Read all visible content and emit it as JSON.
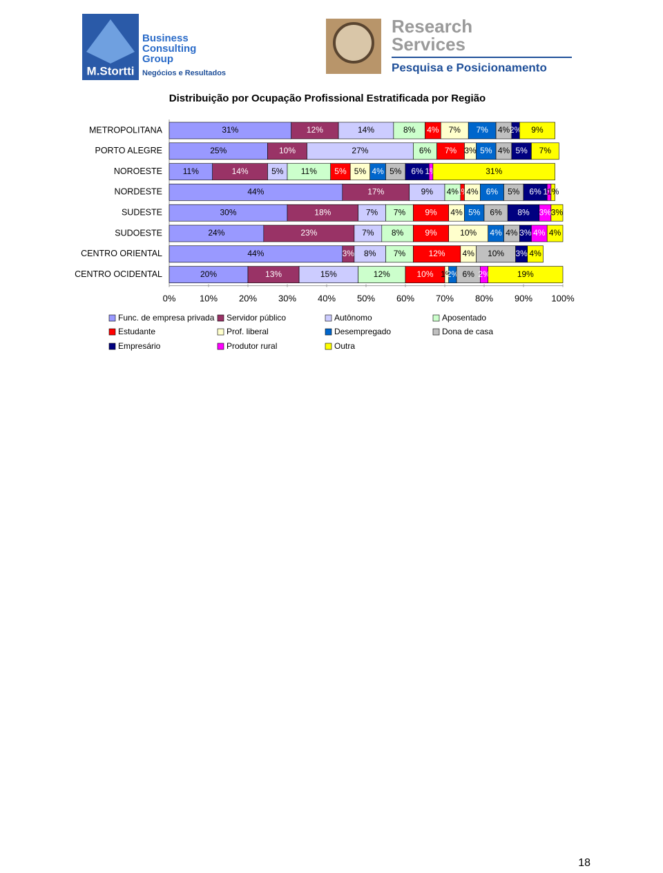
{
  "header": {
    "left_logo": {
      "line1": "Business",
      "line2": "Consulting",
      "line3": "Group",
      "brand": "M.Stortti",
      "tagline": "Negócios e Resultados"
    },
    "right_logo": {
      "line1": "Research",
      "line2": "Services",
      "tagline": "Pesquisa e Posicionamento"
    }
  },
  "chart_data": {
    "type": "stacked-bar-horizontal",
    "title": "Distribuição por Ocupação Profissional Estratificada por Região",
    "categories": [
      "METROPOLITANA",
      "PORTO ALEGRE",
      "NOROESTE",
      "NORDESTE",
      "SUDESTE",
      "SUDOESTE",
      "CENTRO ORIENTAL",
      "CENTRO OCIDENTAL"
    ],
    "series": [
      {
        "name": "Func. de empresa privada",
        "color": "#9999ff",
        "values": [
          31,
          25,
          11,
          44,
          30,
          24,
          44,
          20
        ],
        "value_labels": [
          "31%",
          "25%",
          "11%",
          "44%",
          "30%",
          "24%",
          "44%",
          "20%"
        ]
      },
      {
        "name": "Servidor público",
        "color": "#993366",
        "values": [
          12,
          10,
          14,
          17,
          18,
          23,
          3,
          13
        ],
        "value_labels": [
          "12%",
          "10%",
          "14%",
          "17%",
          "18%",
          "23%",
          "3%",
          "13%"
        ]
      },
      {
        "name": "Autônomo",
        "color": "#ccccff",
        "values": [
          14,
          27,
          5,
          9,
          7,
          7,
          8,
          15
        ],
        "value_labels": [
          "14%",
          "27%",
          "5%",
          "9%",
          "7%",
          "7%",
          "8%",
          "15%"
        ]
      },
      {
        "name": "Aposentado",
        "color": "#ccffcc",
        "values": [
          8,
          6,
          11,
          4,
          7,
          8,
          7,
          12
        ],
        "value_labels": [
          "8%",
          "6%",
          "11%",
          "4%",
          "7%",
          "8%",
          "7%",
          "12%"
        ]
      },
      {
        "name": "Estudante",
        "color": "#ff0000",
        "values": [
          4,
          7,
          5,
          1,
          9,
          9,
          12,
          10
        ],
        "value_labels": [
          "4%",
          "7%",
          "5%",
          "1%",
          "9%",
          "9%",
          "12%",
          "10%"
        ]
      },
      {
        "name": "Prof. liberal",
        "color": "#ffffcc",
        "values": [
          7,
          3,
          5,
          4,
          4,
          10,
          4,
          1
        ],
        "value_labels": [
          "7%",
          "3%",
          "5%",
          "4%",
          "4%",
          "10%",
          "4%",
          "1%"
        ]
      },
      {
        "name": "Desempregado",
        "color": "#0066cc",
        "values": [
          7,
          5,
          4,
          6,
          5,
          4,
          null,
          2
        ],
        "value_labels": [
          "7%",
          "5%",
          "4%",
          "6%",
          "5%",
          "4%",
          null,
          "2%"
        ]
      },
      {
        "name": "Dona de casa",
        "color": "#c0c0c0",
        "values": [
          4,
          4,
          5,
          5,
          6,
          4,
          10,
          6
        ],
        "value_labels": [
          "4%",
          "4%",
          "5%",
          "5%",
          "6%",
          "4%",
          "10%",
          "6%"
        ]
      },
      {
        "name": "Empresário",
        "color": "#000080",
        "values": [
          2,
          5,
          6,
          6,
          8,
          3,
          3,
          null
        ],
        "value_labels": [
          "2%",
          "5%",
          "6%",
          "6%",
          "8%",
          "3%",
          "3%",
          null
        ]
      },
      {
        "name": "Produtor rural",
        "color": "#ff00ff",
        "values": [
          null,
          null,
          1,
          1,
          3,
          4,
          null,
          2
        ],
        "value_labels": [
          null,
          null,
          "1%",
          "1%",
          "3%",
          "4%",
          null,
          "2%"
        ]
      },
      {
        "name": "Outra",
        "color": "#ffff00",
        "values": [
          9,
          7,
          31,
          1,
          3,
          4,
          4,
          19
        ],
        "value_labels": [
          "9%",
          "7%",
          "31%",
          "1%",
          "3%",
          "4%",
          "4%",
          "19%"
        ]
      }
    ],
    "xlim": [
      0,
      100
    ],
    "xticks": [
      {
        "value": 0,
        "label": "0%"
      },
      {
        "value": 10,
        "label": "10%"
      },
      {
        "value": 20,
        "label": "20%"
      },
      {
        "value": 30,
        "label": "30%"
      },
      {
        "value": 40,
        "label": "40%"
      },
      {
        "value": 50,
        "label": "50%"
      },
      {
        "value": 60,
        "label": "60%"
      },
      {
        "value": 70,
        "label": "70%"
      },
      {
        "value": 80,
        "label": "80%"
      },
      {
        "value": 90,
        "label": "90%"
      },
      {
        "value": 100,
        "label": "100%"
      }
    ],
    "legend": "bottom"
  },
  "footer": {
    "page_number": "18"
  }
}
